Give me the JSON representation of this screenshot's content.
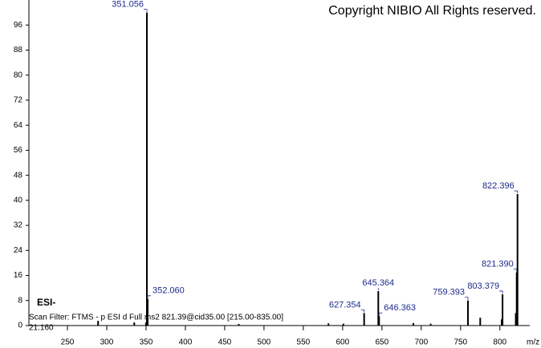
{
  "chart_data": {
    "type": "spectrum",
    "title": "Copyright NIBIO All Rights reserved.",
    "ionization": "ESI-",
    "scan_filter": "Scan Filter: FTMS - p ESI d Full ms2 821.39@cid35.00 [215.00-835.00]",
    "retention_time": "21.160",
    "x_label": "m/z",
    "color": "#000000",
    "label_color": "#1c2a8c",
    "x": [
      289.0,
      335.0,
      349.9,
      351.056,
      352.06,
      468.0,
      582.0,
      601.0,
      627.354,
      645.364,
      646.363,
      690.0,
      712.0,
      759.393,
      775.0,
      802.3,
      803.379,
      820.2,
      821.39,
      822.396
    ],
    "values": [
      1.5,
      1.0,
      1.0,
      100,
      8.5,
      0.5,
      0.7,
      0.6,
      4,
      11,
      3,
      0.8,
      0.6,
      8,
      2.5,
      2,
      10,
      4,
      17,
      42
    ],
    "value_labels": [
      null,
      null,
      null,
      "351.056",
      "352.060",
      null,
      null,
      null,
      "627.354",
      "645.364",
      "646.363",
      null,
      null,
      "759.393",
      null,
      null,
      "803.379",
      null,
      "821.390",
      "822.396"
    ],
    "xlim": [
      201,
      838
    ],
    "ylim": [
      0,
      104
    ],
    "xticks": [
      250,
      300,
      350,
      400,
      450,
      500,
      550,
      600,
      650,
      700,
      750,
      800
    ],
    "yticks": [
      0,
      8,
      16,
      24,
      32,
      40,
      48,
      56,
      64,
      72,
      80,
      88,
      96
    ]
  }
}
